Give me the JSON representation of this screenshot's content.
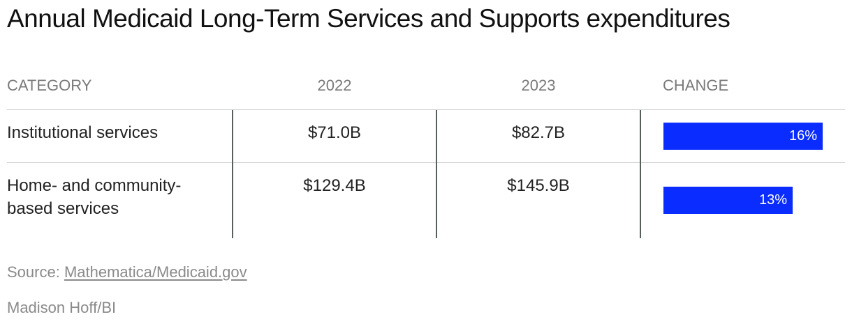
{
  "title": "Annual Medicaid Long-Term Services and Supports expenditures",
  "source_label": "Source:",
  "source_link": "Mathematica/Medicaid.gov",
  "credit": "Madison Hoff/BI",
  "chart_data": {
    "type": "table",
    "columns": [
      "CATEGORY",
      "2022",
      "2023",
      "CHANGE"
    ],
    "rows": [
      {
        "category": "Institutional services",
        "y2022": "$71.0B",
        "y2023": "$82.7B",
        "change": "16%",
        "change_value": 16
      },
      {
        "category": "Home- and community-based services",
        "y2022": "$129.4B",
        "y2023": "$145.9B",
        "change": "13%",
        "change_value": 13
      }
    ],
    "bar_color": "#0a2cff"
  }
}
